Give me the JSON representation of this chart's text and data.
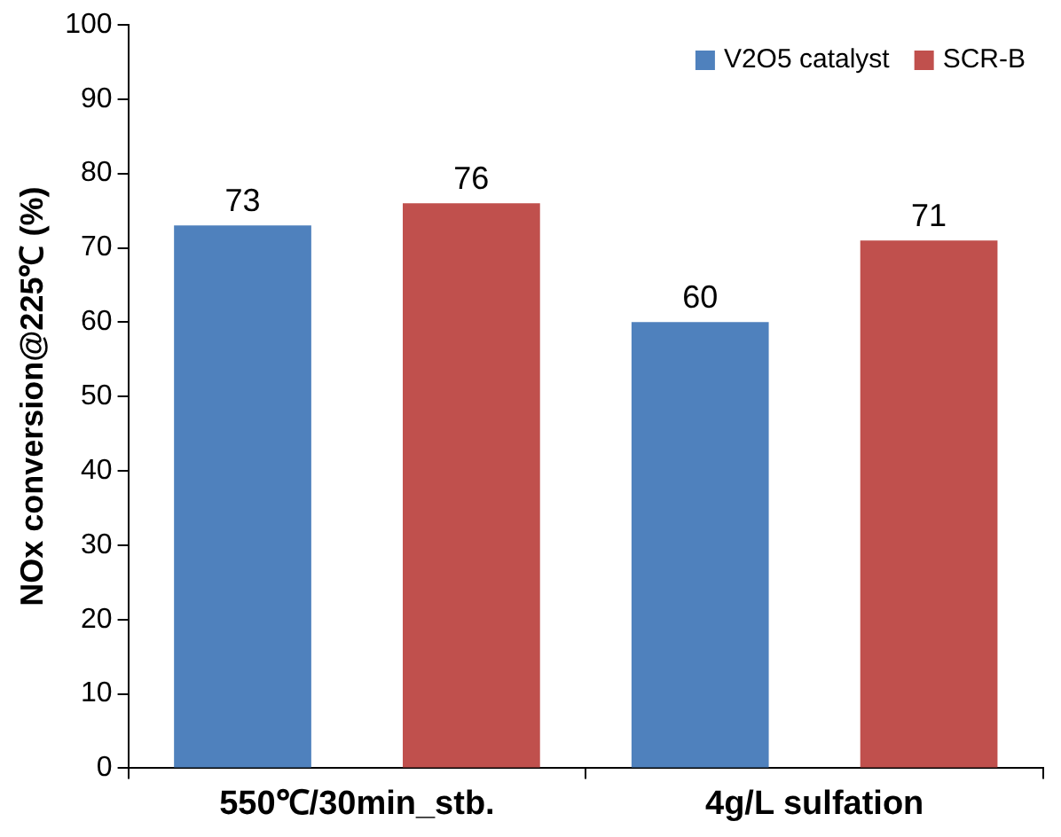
{
  "chart_data": {
    "type": "bar",
    "ylabel": "NOx conversion@225℃ (%)",
    "categories": [
      "550℃/30min_stb.",
      "4g/L sulfation"
    ],
    "series": [
      {
        "name": "V2O5 catalyst",
        "color": "#4f81bd",
        "values": [
          73,
          60
        ]
      },
      {
        "name": "SCR-B",
        "color": "#c0504d",
        "values": [
          76,
          71
        ]
      }
    ],
    "ylim": [
      0,
      100
    ],
    "yticks": [
      0,
      10,
      20,
      30,
      40,
      50,
      60,
      70,
      80,
      90,
      100
    ],
    "grid": false,
    "legend": "top right",
    "data_labels": true
  }
}
